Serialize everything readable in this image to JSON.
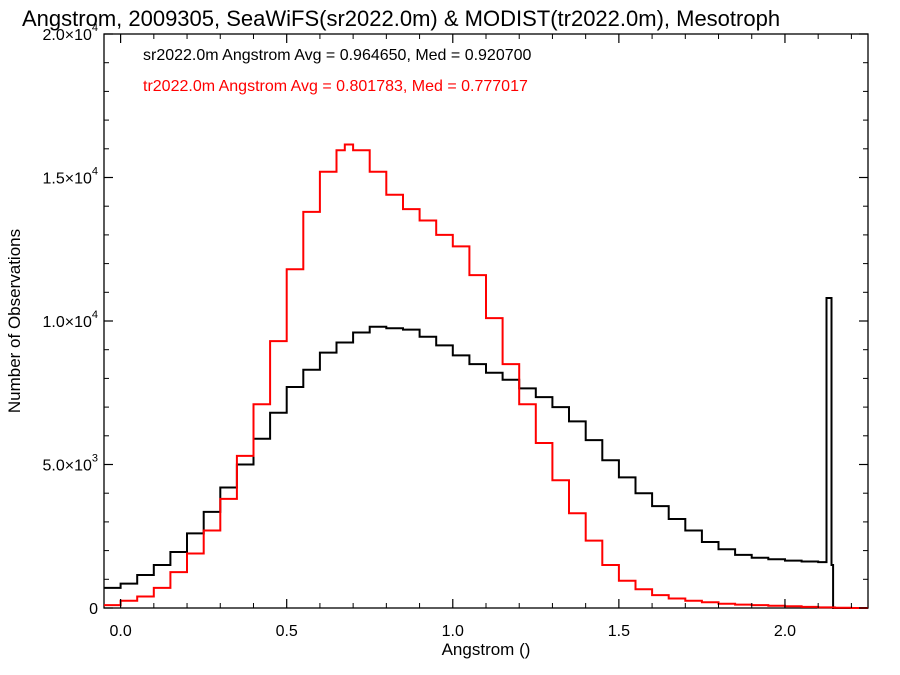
{
  "chart_data": {
    "type": "line",
    "step": true,
    "title": "Angstrom, 2009305, SeaWiFS(sr2022.0m) & MODIST(tr2022.0m), Mesotroph",
    "xlabel": "Angstrom ()",
    "ylabel": "Number of Observations",
    "xlim": [
      -0.05,
      2.25
    ],
    "ylim": [
      0,
      20000
    ],
    "x_ticks": [
      0.0,
      0.5,
      1.0,
      1.5,
      2.0
    ],
    "x_tick_labels": [
      "0.0",
      "0.5",
      "1.0",
      "1.5",
      "2.0"
    ],
    "y_ticks": [
      0,
      5000,
      10000,
      15000,
      20000
    ],
    "y_tick_labels": [
      {
        "mantissa": "0",
        "exp": ""
      },
      {
        "mantissa": "5.0×10",
        "exp": "3"
      },
      {
        "mantissa": "1.0×10",
        "exp": "4"
      },
      {
        "mantissa": "1.5×10",
        "exp": "4"
      },
      {
        "mantissa": "2.0×10",
        "exp": "4"
      }
    ],
    "grid": false,
    "legend_position": "top-left",
    "series": [
      {
        "name": "sr2022.0m",
        "label": "sr2022.0m Angstrom Avg = 0.964650, Med = 0.920700",
        "color": "#000000",
        "points": [
          [
            -0.05,
            700
          ],
          [
            0.0,
            850
          ],
          [
            0.05,
            1150
          ],
          [
            0.1,
            1500
          ],
          [
            0.15,
            1950
          ],
          [
            0.2,
            2600
          ],
          [
            0.25,
            3350
          ],
          [
            0.3,
            4200
          ],
          [
            0.35,
            5000
          ],
          [
            0.4,
            5900
          ],
          [
            0.45,
            6800
          ],
          [
            0.5,
            7700
          ],
          [
            0.55,
            8300
          ],
          [
            0.6,
            8900
          ],
          [
            0.65,
            9250
          ],
          [
            0.7,
            9600
          ],
          [
            0.75,
            9800
          ],
          [
            0.8,
            9750
          ],
          [
            0.85,
            9700
          ],
          [
            0.9,
            9450
          ],
          [
            0.95,
            9150
          ],
          [
            1.0,
            8800
          ],
          [
            1.05,
            8500
          ],
          [
            1.1,
            8200
          ],
          [
            1.15,
            7950
          ],
          [
            1.2,
            7650
          ],
          [
            1.25,
            7350
          ],
          [
            1.3,
            7000
          ],
          [
            1.35,
            6500
          ],
          [
            1.4,
            5850
          ],
          [
            1.45,
            5150
          ],
          [
            1.5,
            4550
          ],
          [
            1.55,
            4000
          ],
          [
            1.6,
            3550
          ],
          [
            1.65,
            3100
          ],
          [
            1.7,
            2700
          ],
          [
            1.75,
            2300
          ],
          [
            1.8,
            2050
          ],
          [
            1.85,
            1850
          ],
          [
            1.9,
            1750
          ],
          [
            1.95,
            1700
          ],
          [
            2.0,
            1650
          ],
          [
            2.05,
            1620
          ],
          [
            2.1,
            1600
          ],
          [
            2.12,
            1600
          ],
          [
            2.125,
            10800
          ],
          [
            2.135,
            10800
          ],
          [
            2.14,
            1500
          ],
          [
            2.145,
            0
          ],
          [
            2.25,
            0
          ]
        ]
      },
      {
        "name": "tr2022.0m",
        "label": "tr2022.0m Angstrom Avg = 0.801783, Med = 0.777017",
        "color": "#ff0000",
        "points": [
          [
            -0.05,
            100
          ],
          [
            0.0,
            250
          ],
          [
            0.05,
            400
          ],
          [
            0.1,
            700
          ],
          [
            0.15,
            1250
          ],
          [
            0.2,
            1900
          ],
          [
            0.25,
            2700
          ],
          [
            0.3,
            3800
          ],
          [
            0.35,
            5300
          ],
          [
            0.4,
            7100
          ],
          [
            0.45,
            9300
          ],
          [
            0.5,
            11800
          ],
          [
            0.55,
            13800
          ],
          [
            0.6,
            15200
          ],
          [
            0.65,
            15950
          ],
          [
            0.675,
            16150
          ],
          [
            0.7,
            15950
          ],
          [
            0.75,
            15200
          ],
          [
            0.8,
            14400
          ],
          [
            0.85,
            13900
          ],
          [
            0.9,
            13500
          ],
          [
            0.95,
            13000
          ],
          [
            1.0,
            12600
          ],
          [
            1.05,
            11600
          ],
          [
            1.1,
            10100
          ],
          [
            1.15,
            8500
          ],
          [
            1.2,
            7100
          ],
          [
            1.25,
            5750
          ],
          [
            1.3,
            4450
          ],
          [
            1.35,
            3300
          ],
          [
            1.4,
            2350
          ],
          [
            1.45,
            1500
          ],
          [
            1.5,
            950
          ],
          [
            1.55,
            650
          ],
          [
            1.6,
            450
          ],
          [
            1.65,
            330
          ],
          [
            1.7,
            250
          ],
          [
            1.75,
            200
          ],
          [
            1.8,
            150
          ],
          [
            1.85,
            120
          ],
          [
            1.9,
            100
          ],
          [
            1.95,
            80
          ],
          [
            2.0,
            60
          ],
          [
            2.05,
            40
          ],
          [
            2.1,
            20
          ],
          [
            2.15,
            10
          ],
          [
            2.2,
            0
          ],
          [
            2.25,
            0
          ]
        ]
      }
    ]
  }
}
